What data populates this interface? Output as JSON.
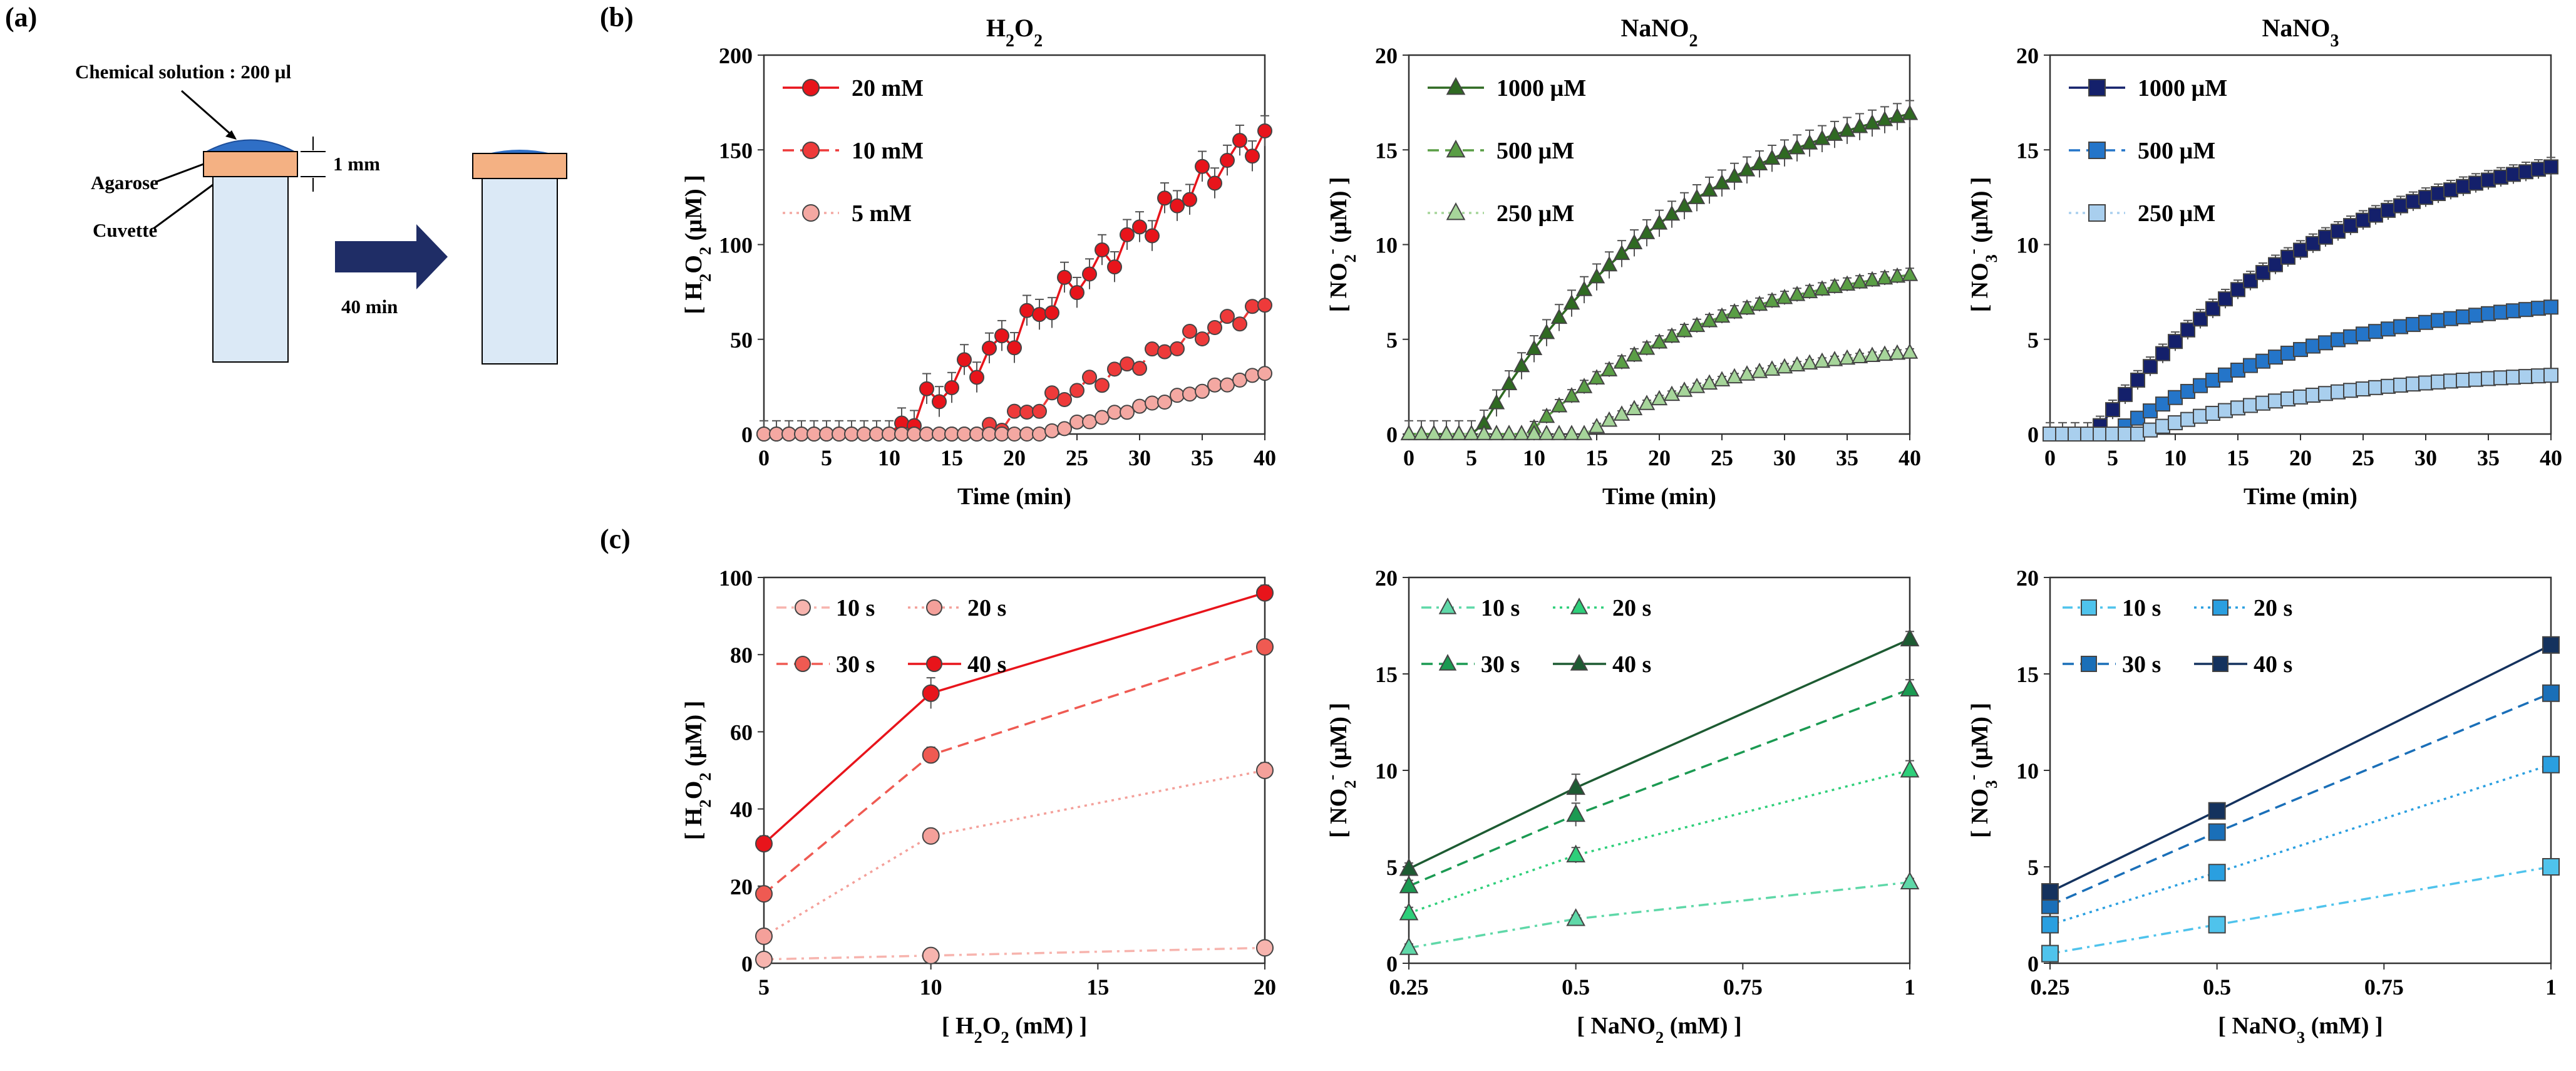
{
  "panel_labels": {
    "a": "(a)",
    "b": "(b)",
    "c": "(c)"
  },
  "schematic": {
    "solution_label": "Chemical solution : 200 µl",
    "thickness_label": "1 mm",
    "agarose_label": "Agarose",
    "cuvette_label": "Cuvette",
    "time_label": "40 min",
    "colors": {
      "drop": "#2f6fc6",
      "agarose": "#f4b183",
      "cuvette": "#dbe9f6",
      "arrow": "#1f2d66"
    }
  },
  "chart_data": [
    {
      "id": "b1",
      "type": "line",
      "title": "H2O2",
      "xlabel": "Time (min)",
      "ylabel": "[ H2O2 (µM) ]",
      "xlim": [
        0,
        40
      ],
      "ylim": [
        0,
        200
      ],
      "xticks": [
        0,
        5,
        10,
        15,
        20,
        25,
        30,
        35,
        40
      ],
      "yticks": [
        0,
        50,
        100,
        150,
        200
      ],
      "legend_position": "top-left",
      "series": [
        {
          "name": "20 mM",
          "color": "#e8141b",
          "marker": "circle",
          "dash": "solid",
          "start": 10,
          "end": 160,
          "noise": 8,
          "err": 8,
          "baseline_err": 7
        },
        {
          "name": "10 mM",
          "color": "#ee3a3a",
          "marker": "circle",
          "dash": "dash",
          "start": 17,
          "end": 68,
          "noise": 4,
          "err": 2
        },
        {
          "name": "5 mM",
          "color": "#f4a8a2",
          "marker": "circle",
          "dash": "dot",
          "start": 22,
          "end": 32,
          "noise": 1,
          "err": 1
        }
      ]
    },
    {
      "id": "b2",
      "type": "line",
      "title": "NaNO2",
      "xlabel": "Time (min)",
      "ylabel": "[ NO2- (µM) ]",
      "xlim": [
        0,
        40
      ],
      "ylim": [
        0,
        20
      ],
      "xticks": [
        0,
        5,
        10,
        15,
        20,
        25,
        30,
        35,
        40
      ],
      "yticks": [
        0,
        5,
        10,
        15,
        20
      ],
      "legend_position": "top-left",
      "series": [
        {
          "name": "1000 µM",
          "color": "#2f6a22",
          "marker": "triangle",
          "dash": "solid",
          "start": 5.5,
          "end": 16.9,
          "shape": "sat",
          "err": 0.7,
          "baseline_err": 0.7
        },
        {
          "name": "500 µM",
          "color": "#5a9e45",
          "marker": "triangle",
          "dash": "dash",
          "start": 9.5,
          "end": 8.4,
          "shape": "sat",
          "err": 0.35
        },
        {
          "name": "250 µM",
          "color": "#a6d59a",
          "marker": "triangle",
          "dash": "dot",
          "start": 14,
          "end": 4.3,
          "shape": "sat",
          "err": 0.2
        }
      ]
    },
    {
      "id": "b3",
      "type": "line",
      "title": "NaNO3",
      "xlabel": "Time (min)",
      "ylabel": "[ NO3- (µM) ]",
      "xlim": [
        0,
        40
      ],
      "ylim": [
        0,
        20
      ],
      "xticks": [
        0,
        5,
        10,
        15,
        20,
        25,
        30,
        35,
        40
      ],
      "yticks": [
        0,
        5,
        10,
        15,
        20
      ],
      "legend_position": "top-left",
      "series": [
        {
          "name": "1000 µM",
          "color": "#14206b",
          "marker": "square",
          "dash": "solid",
          "start": 3.5,
          "end": 14.1,
          "shape": "sat",
          "err": 0.5,
          "baseline_err": 0.6
        },
        {
          "name": "500 µM",
          "color": "#2475c9",
          "marker": "square",
          "dash": "dash",
          "start": 5,
          "end": 6.7,
          "shape": "sat",
          "err": 0.3
        },
        {
          "name": "250 µM",
          "color": "#a9cfee",
          "marker": "square",
          "dash": "dot",
          "start": 7,
          "end": 3.1,
          "shape": "sat",
          "err": 0.2
        }
      ]
    },
    {
      "id": "c1",
      "type": "line",
      "xlabel": "[ H2O2 (mM) ]",
      "ylabel": "[ H2O2 (µM) ]",
      "xlim": [
        5,
        20
      ],
      "ylim": [
        0,
        100
      ],
      "xticks": [
        5,
        10,
        15,
        20
      ],
      "yticks": [
        0,
        20,
        40,
        60,
        80,
        100
      ],
      "legend_position": "top-left",
      "x": [
        5,
        10,
        20
      ],
      "series": [
        {
          "name": "10 s",
          "color": "#f7b4ae",
          "marker": "circle",
          "dash": "dashdot",
          "values": [
            1,
            2,
            4
          ],
          "err": [
            0.5,
            0.5,
            0.5
          ]
        },
        {
          "name": "20 s",
          "color": "#f4a09a",
          "marker": "circle",
          "dash": "dot",
          "values": [
            7,
            33,
            50
          ],
          "err": [
            1,
            1,
            2
          ]
        },
        {
          "name": "30 s",
          "color": "#ef5a52",
          "marker": "circle",
          "dash": "dash",
          "values": [
            18,
            54,
            82
          ],
          "err": [
            1,
            2,
            1
          ]
        },
        {
          "name": "40 s",
          "color": "#e8141b",
          "marker": "circle",
          "dash": "solid",
          "values": [
            31,
            70,
            96
          ],
          "err": [
            2,
            4,
            2
          ]
        }
      ]
    },
    {
      "id": "c2",
      "type": "line",
      "xlabel": "[ NaNO2 (mM) ]",
      "ylabel": "[ NO2- (µM) ]",
      "xlim": [
        0.25,
        1
      ],
      "ylim": [
        0,
        20
      ],
      "xticks": [
        0.25,
        0.5,
        0.75,
        1
      ],
      "xticklabels": [
        "0.25",
        "0.5",
        "0.75",
        "1"
      ],
      "yticks": [
        0,
        5,
        10,
        15,
        20
      ],
      "legend_position": "top-left",
      "x": [
        0.25,
        0.5,
        1
      ],
      "series": [
        {
          "name": "10 s",
          "color": "#5fd8a8",
          "marker": "triangle",
          "dash": "dashdot",
          "values": [
            0.8,
            2.3,
            4.2
          ],
          "err": [
            0.2,
            0.2,
            0.2
          ]
        },
        {
          "name": "20 s",
          "color": "#2ecf7a",
          "marker": "triangle",
          "dash": "dot",
          "values": [
            2.6,
            5.6,
            10
          ],
          "err": [
            0.3,
            0.4,
            0.5
          ]
        },
        {
          "name": "30 s",
          "color": "#1b9a52",
          "marker": "triangle",
          "dash": "dash",
          "values": [
            4.0,
            7.7,
            14.2
          ],
          "err": [
            0.3,
            0.6,
            0.5
          ]
        },
        {
          "name": "40 s",
          "color": "#1d5b32",
          "marker": "triangle",
          "dash": "solid",
          "values": [
            4.9,
            9.1,
            16.8
          ],
          "err": [
            0.3,
            0.7,
            0.4
          ]
        }
      ]
    },
    {
      "id": "c3",
      "type": "line",
      "xlabel": "[ NaNO3 (mM) ]",
      "ylabel": "[ NO3- (µM) ]",
      "xlim": [
        0.25,
        1
      ],
      "ylim": [
        0,
        20
      ],
      "xticks": [
        0.25,
        0.5,
        0.75,
        1
      ],
      "xticklabels": [
        "0.25",
        "0.5",
        "0.75",
        "1"
      ],
      "yticks": [
        0,
        5,
        10,
        15,
        20
      ],
      "legend_position": "top-left",
      "x": [
        0.25,
        0.5,
        1
      ],
      "series": [
        {
          "name": "10 s",
          "color": "#4fc3ec",
          "marker": "square",
          "dash": "dashdot",
          "values": [
            0.5,
            2.0,
            5.0
          ],
          "err": [
            0.2,
            0.3,
            0.3
          ]
        },
        {
          "name": "20 s",
          "color": "#2a9fe0",
          "marker": "square",
          "dash": "dot",
          "values": [
            2.0,
            4.7,
            10.3
          ],
          "err": [
            0.3,
            0.3,
            0.4
          ]
        },
        {
          "name": "30 s",
          "color": "#1a6fb8",
          "marker": "square",
          "dash": "dash",
          "values": [
            3.0,
            6.8,
            14.0
          ],
          "err": [
            0.3,
            0.3,
            0.4
          ]
        },
        {
          "name": "40 s",
          "color": "#14325e",
          "marker": "square",
          "dash": "solid",
          "values": [
            3.7,
            7.9,
            16.5
          ],
          "err": [
            0.3,
            0.3,
            0.3
          ]
        }
      ]
    }
  ]
}
